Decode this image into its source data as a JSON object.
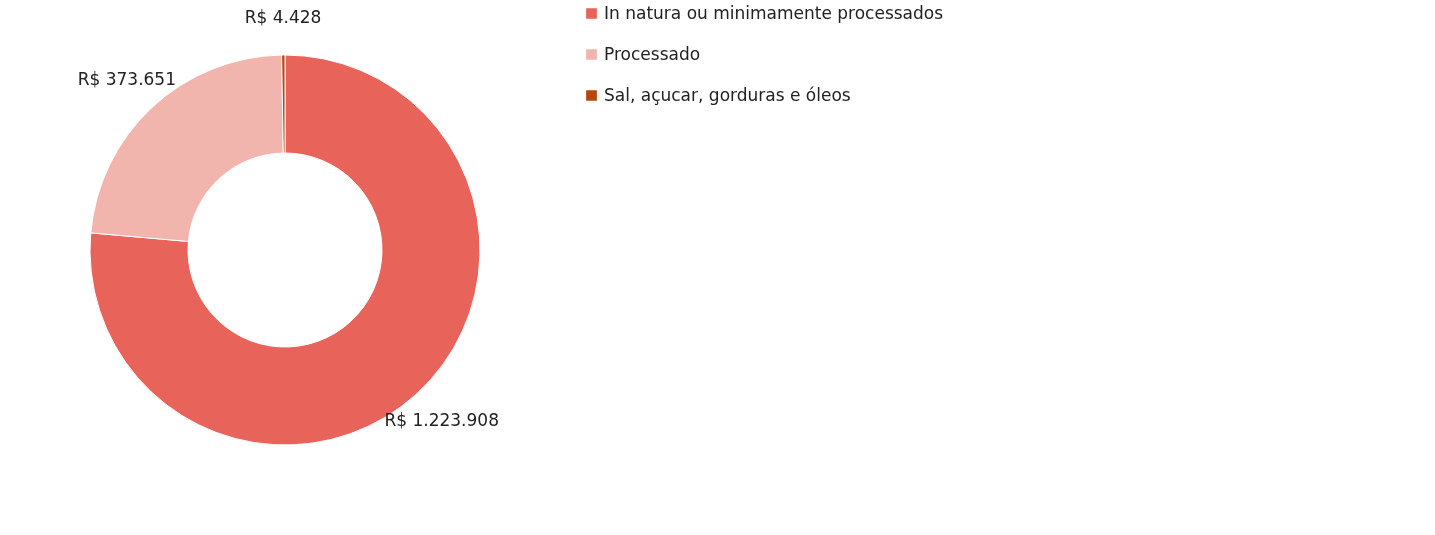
{
  "chart_data": {
    "type": "donut",
    "categories": [
      "In natura ou minimamente processados",
      "Processado",
      "Sal, açucar, gorduras e óleos"
    ],
    "values": [
      1223908,
      373651,
      4428
    ],
    "colors": [
      "#e8635a",
      "#f2b5ae",
      "#b5470c"
    ],
    "value_labels": [
      "R$ 1.223.908",
      "R$ 373.651",
      "R$ 4.428"
    ],
    "legend": "right"
  }
}
